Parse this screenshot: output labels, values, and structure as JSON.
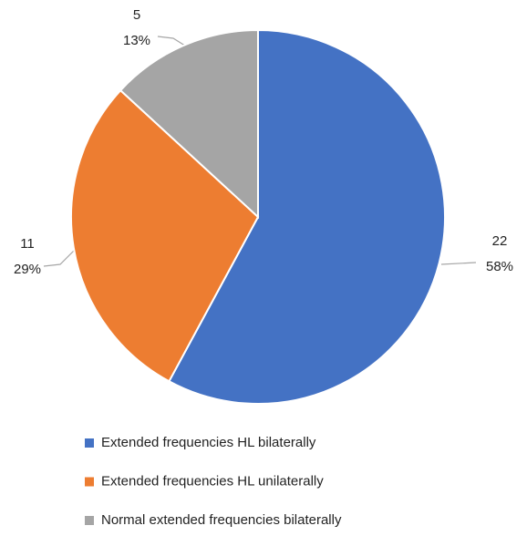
{
  "chart_data": {
    "type": "pie",
    "categories": [
      "Extended frequencies HL bilaterally",
      "Extended frequencies HL unilaterally",
      "Normal extended frequencies bilaterally"
    ],
    "values": [
      22,
      11,
      5
    ],
    "percent_labels": [
      "58%",
      "29%",
      "13%"
    ],
    "colors": [
      "#4472c4",
      "#ed7d31",
      "#a5a5a5"
    ],
    "legend": "bottom"
  }
}
